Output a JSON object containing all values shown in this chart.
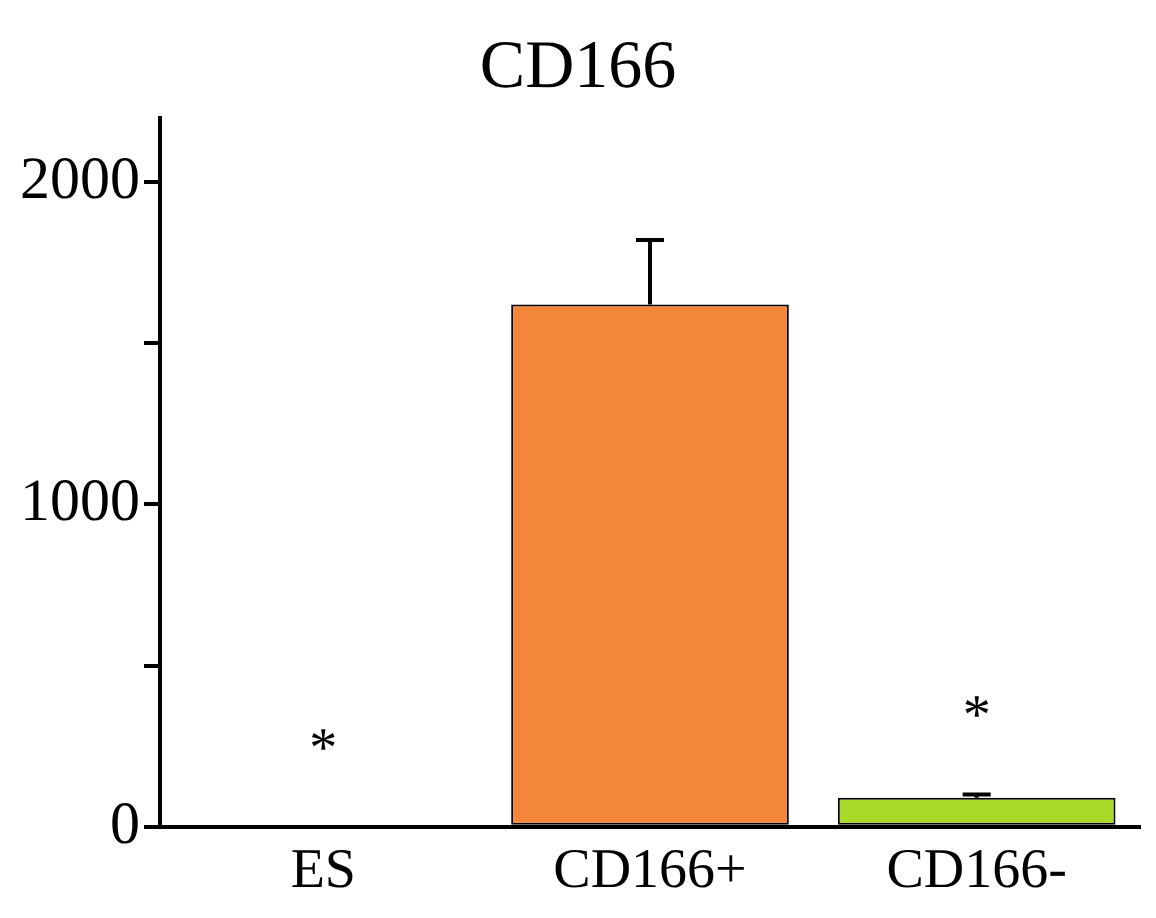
{
  "chart_data": {
    "type": "bar",
    "title": "CD166",
    "categories": [
      "ES",
      "CD166+",
      "CD166-"
    ],
    "values": [
      0,
      1620,
      90
    ],
    "colors": [
      "#f4863a",
      "#f4863a",
      "#a8d928"
    ],
    "errors": [
      null,
      [
        1620,
        1820
      ],
      [
        90,
        100
      ]
    ],
    "ylim": [
      0,
      2200
    ],
    "yticks": [
      0,
      {
        "value": 500,
        "label": null
      },
      1000,
      {
        "value": 1500,
        "label": null
      },
      2000
    ],
    "annotations": [
      {
        "text": "*",
        "x": "ES",
        "y": 0
      },
      {
        "text": "*",
        "x": "CD166-",
        "y": 100
      }
    ],
    "grid": false,
    "legend": false
  }
}
